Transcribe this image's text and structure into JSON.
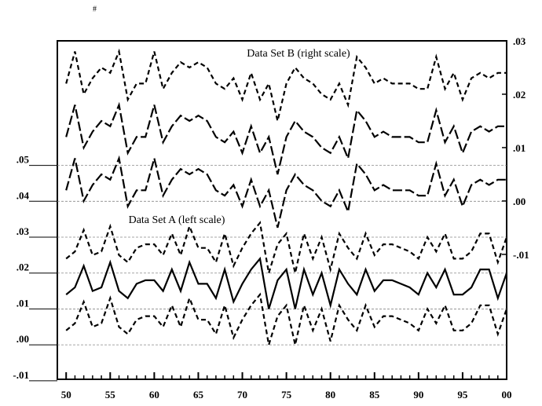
{
  "chart_data": {
    "type": "line",
    "corner_label": "#",
    "annotations": [
      "Data Set B (right scale)",
      "Data Set A (left scale)"
    ],
    "x": [
      50,
      51,
      52,
      53,
      54,
      55,
      56,
      57,
      58,
      59,
      60,
      61,
      62,
      63,
      64,
      65,
      66,
      67,
      68,
      69,
      70,
      71,
      72,
      73,
      74,
      75,
      76,
      77,
      78,
      79,
      80,
      81,
      82,
      83,
      84,
      85,
      86,
      87,
      88,
      89,
      90,
      91,
      92,
      93,
      94,
      95,
      96,
      97,
      98,
      99,
      100
    ],
    "xlim": [
      49,
      100
    ],
    "xticks": [
      50,
      55,
      60,
      65,
      70,
      75,
      80,
      85,
      90,
      95,
      {
        "value": 100,
        "label": "00"
      }
    ],
    "ylim": [
      -0.0096,
      0.0847
    ],
    "yticks": [
      {
        "value": 0.05,
        "label": ".05"
      },
      {
        "value": 0.04,
        "label": ".04"
      },
      {
        "value": 0.03,
        "label": ".03"
      },
      {
        "value": 0.02,
        "label": ".02"
      },
      {
        "value": 0.01,
        "label": ".01"
      },
      {
        "value": 0,
        "label": ".00"
      },
      {
        "value": -0.01,
        "label": "-.01"
      }
    ],
    "y2lim": [
      -0.0334,
      0.03
    ],
    "y2ticks": [
      {
        "value": 0.03,
        "label": ".03"
      },
      {
        "value": 0.02,
        "label": ".02"
      },
      {
        "value": 0.01,
        "label": ".01"
      },
      {
        "value": 0,
        "label": ".00"
      },
      {
        "value": -0.01,
        "label": "-.01"
      }
    ],
    "grid": true,
    "series": [
      {
        "color": "#000",
        "style": "dashed",
        "values": [
          0.024,
          0.026,
          0.032,
          0.025,
          0.026,
          0.033,
          0.025,
          0.023,
          0.027,
          0.028,
          0.028,
          0.025,
          0.031,
          0.025,
          0.033,
          0.027,
          0.027,
          0.023,
          0.031,
          0.022,
          0.027,
          0.031,
          0.034,
          0.02,
          0.028,
          0.031,
          0.02,
          0.031,
          0.024,
          0.03,
          0.021,
          0.031,
          0.027,
          0.024,
          0.031,
          0.025,
          0.028,
          0.028,
          0.027,
          0.026,
          0.024,
          0.03,
          0.026,
          0.031,
          0.024,
          0.024,
          0.026,
          0.031,
          0.031,
          0.023,
          0.03
        ]
      },
      {
        "color": "#000",
        "style": "solid",
        "values": [
          0.014,
          0.016,
          0.022,
          0.015,
          0.016,
          0.023,
          0.015,
          0.013,
          0.017,
          0.018,
          0.018,
          0.015,
          0.021,
          0.015,
          0.023,
          0.017,
          0.017,
          0.013,
          0.021,
          0.012,
          0.017,
          0.021,
          0.024,
          0.01,
          0.018,
          0.021,
          0.01,
          0.021,
          0.014,
          0.02,
          0.011,
          0.021,
          0.017,
          0.014,
          0.021,
          0.015,
          0.018,
          0.018,
          0.017,
          0.016,
          0.014,
          0.02,
          0.016,
          0.021,
          0.014,
          0.014,
          0.016,
          0.021,
          0.021,
          0.013,
          0.02
        ]
      },
      {
        "color": "#000",
        "style": "dashed",
        "values": [
          0.004,
          0.006,
          0.012,
          0.005,
          0.006,
          0.013,
          0.005,
          0.003,
          0.007,
          0.008,
          0.008,
          0.005,
          0.011,
          0.005,
          0.013,
          0.007,
          0.007,
          0.003,
          0.011,
          0.002,
          0.007,
          0.011,
          0.014,
          0.0,
          0.008,
          0.011,
          0.0,
          0.011,
          0.004,
          0.01,
          0.001,
          0.011,
          0.007,
          0.004,
          0.011,
          0.005,
          0.008,
          0.008,
          0.007,
          0.006,
          0.004,
          0.01,
          0.006,
          0.011,
          0.004,
          0.004,
          0.006,
          0.011,
          0.011,
          0.003,
          0.01
        ]
      },
      {
        "color": "#000",
        "style": "dashed",
        "axis": "y2",
        "values": [
          0.022,
          0.028,
          0.02,
          0.023,
          0.025,
          0.024,
          0.028,
          0.019,
          0.022,
          0.022,
          0.028,
          0.021,
          0.024,
          0.026,
          0.025,
          0.026,
          0.025,
          0.022,
          0.021,
          0.023,
          0.019,
          0.024,
          0.019,
          0.022,
          0.015,
          0.022,
          0.025,
          0.023,
          0.022,
          0.02,
          0.019,
          0.022,
          0.018,
          0.027,
          0.025,
          0.022,
          0.023,
          0.022,
          0.022,
          0.022,
          0.021,
          0.021,
          0.027,
          0.021,
          0.024,
          0.019,
          0.023,
          0.024,
          0.023,
          0.024,
          0.024
        ]
      },
      {
        "color": "#000",
        "style": "longdash",
        "axis": "y2",
        "values": [
          0.012,
          0.018,
          0.01,
          0.013,
          0.015,
          0.014,
          0.018,
          0.009,
          0.012,
          0.012,
          0.018,
          0.011,
          0.014,
          0.016,
          0.015,
          0.016,
          0.015,
          0.012,
          0.011,
          0.013,
          0.009,
          0.014,
          0.009,
          0.012,
          0.005,
          0.012,
          0.015,
          0.013,
          0.012,
          0.01,
          0.009,
          0.012,
          0.008,
          0.017,
          0.015,
          0.012,
          0.013,
          0.012,
          0.012,
          0.012,
          0.011,
          0.011,
          0.017,
          0.011,
          0.014,
          0.009,
          0.013,
          0.014,
          0.013,
          0.014,
          0.014
        ]
      },
      {
        "color": "#000",
        "style": "longdash",
        "axis": "y2",
        "values": [
          0.002,
          0.008,
          0.0,
          0.003,
          0.005,
          0.004,
          0.008,
          -0.001,
          0.002,
          0.002,
          0.008,
          0.001,
          0.004,
          0.006,
          0.005,
          0.006,
          0.005,
          0.002,
          0.001,
          0.003,
          -0.001,
          0.004,
          -0.001,
          0.002,
          -0.005,
          0.002,
          0.005,
          0.003,
          0.002,
          0.0,
          -0.001,
          0.002,
          -0.002,
          0.007,
          0.005,
          0.002,
          0.003,
          0.002,
          0.002,
          0.002,
          0.001,
          0.001,
          0.007,
          0.001,
          0.004,
          -0.001,
          0.003,
          0.004,
          0.003,
          0.004,
          0.004
        ]
      }
    ]
  }
}
